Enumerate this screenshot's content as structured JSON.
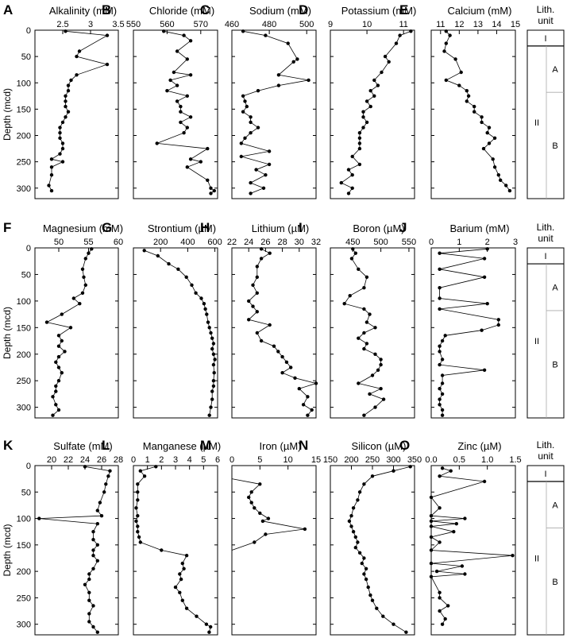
{
  "y_axis": {
    "label": "Depth (mcd)",
    "range": [
      0,
      320
    ],
    "ticks": [
      0,
      50,
      100,
      150,
      200,
      250,
      300
    ]
  },
  "lith_column": {
    "title_line1": "Lith.",
    "title_line2": "unit",
    "units": [
      {
        "label": "I",
        "top": 0,
        "bottom": 30
      },
      {
        "label": "II",
        "top": 30,
        "bottom": 320,
        "subunits": [
          {
            "label": "A",
            "top": 30,
            "bottom": 118
          },
          {
            "label": "B",
            "top": 118,
            "bottom": 320
          }
        ]
      }
    ]
  },
  "chart_data": [
    {
      "letter": "A",
      "type": "line",
      "title": "Alkalinity (mM)",
      "xlim": [
        2,
        3.5
      ],
      "ticks": [
        2.5,
        3,
        3.5
      ],
      "tick_labels": [
        "2.5",
        "3",
        "3.5"
      ],
      "x": [
        2.55,
        3.3,
        2.8,
        2.75,
        3.3,
        2.75,
        2.65,
        2.6,
        2.6,
        2.55,
        2.55,
        2.55,
        2.6,
        2.55,
        2.5,
        2.45,
        2.45,
        2.45,
        2.5,
        2.5,
        2.45,
        2.3,
        2.5,
        2.3,
        2.3,
        2.25,
        2.3
      ],
      "depth": [
        2,
        10,
        40,
        50,
        65,
        85,
        95,
        105,
        115,
        125,
        135,
        145,
        155,
        165,
        175,
        185,
        195,
        205,
        215,
        225,
        235,
        245,
        250,
        260,
        275,
        295,
        305
      ]
    },
    {
      "letter": "B",
      "type": "line",
      "title": "Chloride (mM)",
      "xlim": [
        550,
        575
      ],
      "ticks": [
        550,
        560,
        570
      ],
      "tick_labels": [
        "550",
        "560",
        "570"
      ],
      "x": [
        559,
        565,
        567,
        563,
        566,
        562,
        567,
        561,
        563,
        560,
        566,
        563,
        564,
        564,
        567,
        564,
        566,
        565,
        557,
        572,
        567,
        570,
        566,
        572,
        573,
        574,
        573
      ],
      "depth": [
        2,
        10,
        20,
        40,
        55,
        80,
        85,
        95,
        105,
        115,
        125,
        135,
        145,
        155,
        165,
        175,
        185,
        195,
        215,
        225,
        245,
        250,
        260,
        285,
        300,
        305,
        310
      ]
    },
    {
      "letter": "C",
      "type": "line",
      "title": "Sodium (mM)",
      "xlim": [
        460,
        505
      ],
      "ticks": [
        460,
        480,
        500
      ],
      "tick_labels": [
        "460",
        "480",
        "500"
      ],
      "x": [
        466,
        478,
        490,
        495,
        493,
        485,
        501,
        485,
        474,
        466,
        467,
        468,
        466,
        470,
        470,
        474,
        470,
        467,
        465,
        480,
        465,
        480,
        473,
        478,
        470,
        477,
        470
      ],
      "depth": [
        2,
        10,
        25,
        55,
        60,
        85,
        95,
        105,
        115,
        125,
        135,
        145,
        155,
        165,
        175,
        185,
        195,
        205,
        215,
        230,
        240,
        255,
        265,
        275,
        290,
        300,
        310
      ]
    },
    {
      "letter": "D",
      "type": "line",
      "title": "Potassium (mM)",
      "xlim": [
        9,
        11.3
      ],
      "ticks": [
        9,
        10,
        11
      ],
      "tick_labels": [
        "9",
        "10",
        "11"
      ],
      "x": [
        11.2,
        10.9,
        10.8,
        10.5,
        10.6,
        10.4,
        10.2,
        10.3,
        10.1,
        10.2,
        10.0,
        10.1,
        9.9,
        9.9,
        10.0,
        9.9,
        9.8,
        9.8,
        9.8,
        9.8,
        9.6,
        9.8,
        9.5,
        9.6,
        9.3,
        9.6,
        9.5
      ],
      "depth": [
        2,
        10,
        25,
        50,
        60,
        80,
        95,
        105,
        115,
        125,
        135,
        145,
        155,
        165,
        175,
        185,
        195,
        205,
        215,
        225,
        240,
        255,
        265,
        275,
        290,
        300,
        310
      ]
    },
    {
      "letter": "E",
      "type": "line",
      "title": "Calcium (mM)",
      "xlim": [
        10.5,
        15
      ],
      "ticks": [
        11,
        12,
        13,
        14,
        15
      ],
      "tick_labels": [
        "11",
        "12",
        "13",
        "14",
        "15"
      ],
      "x": [
        11.3,
        11.5,
        11.3,
        11.2,
        11.8,
        12.1,
        11.3,
        12.0,
        12.4,
        12.5,
        12.4,
        12.8,
        12.8,
        13.2,
        13.2,
        13.6,
        13.5,
        13.9,
        13.6,
        13.3,
        13.8,
        13.9,
        14.1,
        14.2,
        14.5,
        14.7
      ],
      "depth": [
        2,
        10,
        25,
        40,
        55,
        80,
        95,
        105,
        115,
        125,
        135,
        145,
        155,
        165,
        175,
        185,
        195,
        205,
        215,
        225,
        245,
        260,
        275,
        285,
        295,
        305
      ]
    },
    {
      "letter": "F",
      "type": "line",
      "title": "Magnesium (mM)",
      "xlim": [
        46,
        60
      ],
      "ticks": [
        50,
        55,
        60
      ],
      "tick_labels": [
        "50",
        "55",
        "60"
      ],
      "x": [
        55.5,
        55,
        54.5,
        54,
        54.2,
        54.5,
        54,
        52.5,
        53.5,
        50.5,
        48,
        52,
        50,
        50.5,
        50,
        51,
        50,
        49.5,
        50,
        50.5,
        50,
        49.5,
        49.5,
        49,
        49.5,
        50,
        49
      ],
      "depth": [
        2,
        10,
        20,
        40,
        55,
        70,
        85,
        95,
        105,
        125,
        140,
        150,
        165,
        175,
        185,
        195,
        205,
        215,
        225,
        235,
        250,
        260,
        270,
        280,
        295,
        305,
        315
      ]
    },
    {
      "letter": "G",
      "type": "line",
      "title": "Strontium (µM)",
      "xlim": [
        0,
        620
      ],
      "ticks": [
        200,
        400,
        600
      ],
      "tick_labels": [
        "200",
        "400",
        "600"
      ],
      "x": [
        80,
        180,
        260,
        330,
        390,
        430,
        460,
        500,
        520,
        530,
        540,
        550,
        560,
        570,
        580,
        590,
        580,
        590,
        600,
        590,
        595,
        590,
        590,
        580,
        580,
        570,
        560
      ],
      "depth": [
        5,
        15,
        30,
        40,
        55,
        70,
        85,
        95,
        105,
        115,
        125,
        140,
        150,
        160,
        170,
        180,
        190,
        200,
        210,
        220,
        235,
        250,
        260,
        270,
        285,
        300,
        315
      ]
    },
    {
      "letter": "H",
      "type": "line",
      "title": "Lithium (µM)",
      "xlim": [
        22,
        32
      ],
      "ticks": [
        22,
        24,
        26,
        28,
        30,
        32
      ],
      "tick_labels": [
        "22",
        "24",
        "26",
        "28",
        "30",
        "32"
      ],
      "x": [
        25.5,
        26.5,
        25.5,
        25,
        25,
        24.5,
        25,
        24,
        24.5,
        25,
        24,
        26.5,
        25,
        25.5,
        27,
        27.5,
        28,
        28.5,
        29,
        28,
        29.5,
        32,
        30,
        31,
        30.5,
        31.5,
        31
      ],
      "depth": [
        2,
        10,
        20,
        35,
        55,
        70,
        85,
        100,
        110,
        120,
        135,
        145,
        160,
        175,
        185,
        195,
        205,
        215,
        225,
        235,
        245,
        255,
        265,
        280,
        295,
        305,
        315
      ]
    },
    {
      "letter": "I",
      "type": "line",
      "title": "Boron (µM)",
      "xlim": [
        410,
        560
      ],
      "ticks": [
        450,
        500,
        550
      ],
      "tick_labels": [
        "450",
        "500",
        "550"
      ],
      "x": [
        450,
        455,
        448,
        460,
        475,
        470,
        445,
        435,
        470,
        480,
        475,
        490,
        470,
        460,
        475,
        470,
        490,
        500,
        500,
        495,
        485,
        460,
        500,
        480,
        505,
        490,
        470
      ],
      "depth": [
        2,
        10,
        20,
        40,
        55,
        75,
        90,
        105,
        115,
        125,
        140,
        150,
        160,
        170,
        180,
        190,
        200,
        210,
        220,
        230,
        240,
        255,
        265,
        275,
        285,
        300,
        315
      ]
    },
    {
      "letter": "J",
      "type": "line",
      "title": "Barium (mM)",
      "xlim": [
        0,
        3
      ],
      "ticks": [
        0,
        1,
        2,
        3
      ],
      "tick_labels": [
        "0",
        "1",
        "2",
        "3"
      ],
      "x": [
        2.0,
        0.3,
        1.9,
        0.3,
        1.9,
        0.3,
        0.3,
        2.0,
        0.3,
        2.4,
        2.4,
        1.8,
        0.5,
        0.4,
        0.3,
        0.3,
        0.4,
        0.3,
        1.9,
        0.4,
        0.4,
        0.3,
        0.4,
        0.3,
        0.3,
        0.4,
        0.4
      ],
      "depth": [
        2,
        10,
        20,
        40,
        55,
        75,
        95,
        105,
        115,
        135,
        145,
        155,
        165,
        175,
        185,
        195,
        210,
        220,
        230,
        240,
        255,
        265,
        275,
        285,
        295,
        305,
        315
      ]
    },
    {
      "letter": "K",
      "type": "line",
      "title": "Sulfate (mM)",
      "xlim": [
        18,
        28
      ],
      "ticks": [
        20,
        22,
        24,
        26,
        28
      ],
      "tick_labels": [
        "20",
        "22",
        "24",
        "26",
        "28"
      ],
      "x": [
        24,
        27,
        26.8,
        26.5,
        26.3,
        25.8,
        25.5,
        26,
        18.5,
        25.5,
        25,
        25,
        25.5,
        25,
        25,
        25.5,
        25,
        24.5,
        24.5,
        24,
        24.5,
        24.5,
        25,
        24.5,
        24.5,
        25,
        25.5
      ],
      "depth": [
        2,
        10,
        20,
        35,
        50,
        70,
        85,
        95,
        100,
        110,
        125,
        140,
        150,
        160,
        170,
        180,
        195,
        205,
        215,
        225,
        240,
        255,
        265,
        280,
        295,
        305,
        315
      ]
    },
    {
      "letter": "L",
      "type": "line",
      "title": "Manganese (µM)",
      "xlim": [
        0,
        6
      ],
      "ticks": [
        0,
        1,
        2,
        3,
        4,
        5,
        6
      ],
      "tick_labels": [
        "0",
        "1",
        "2",
        "3",
        "4",
        "5",
        "6"
      ],
      "x": [
        1.6,
        0.5,
        0.8,
        0.3,
        0.3,
        0.3,
        0.2,
        0.3,
        0.2,
        0.3,
        0.3,
        0.4,
        0.5,
        2.0,
        3.8,
        3.5,
        3.6,
        3.3,
        3.4,
        3.0,
        3.3,
        3.5,
        3.8,
        4.5,
        5.2,
        5.5,
        5.4
      ],
      "depth": [
        2,
        10,
        20,
        35,
        50,
        65,
        80,
        95,
        105,
        115,
        125,
        135,
        145,
        160,
        170,
        185,
        195,
        205,
        215,
        230,
        240,
        255,
        270,
        285,
        300,
        305,
        315
      ]
    },
    {
      "letter": "M",
      "type": "line",
      "title": "Iron (µM)",
      "xlim": [
        0,
        15
      ],
      "ticks": [
        0,
        5,
        10,
        15
      ],
      "tick_labels": [
        "0",
        "5",
        "10",
        "15"
      ],
      "x": [
        0,
        5,
        3.5,
        3,
        3.5,
        4,
        5,
        6.5,
        5.5,
        13,
        6,
        4,
        0
      ],
      "depth": [
        25,
        35,
        50,
        60,
        70,
        80,
        90,
        100,
        105,
        120,
        130,
        145,
        160
      ]
    },
    {
      "letter": "N",
      "type": "line",
      "title": "Silicon (µM)",
      "xlim": [
        150,
        350
      ],
      "ticks": [
        150,
        200,
        250,
        300,
        350
      ],
      "tick_labels": [
        "150",
        "200",
        "250",
        "300",
        "350"
      ],
      "x": [
        340,
        300,
        250,
        230,
        220,
        215,
        205,
        200,
        195,
        200,
        205,
        210,
        215,
        210,
        220,
        230,
        225,
        235,
        230,
        235,
        240,
        245,
        250,
        260,
        275,
        300,
        330
      ],
      "depth": [
        2,
        10,
        20,
        35,
        50,
        65,
        80,
        95,
        105,
        115,
        125,
        135,
        145,
        155,
        165,
        175,
        185,
        195,
        205,
        215,
        230,
        245,
        255,
        270,
        285,
        300,
        315
      ]
    },
    {
      "letter": "O",
      "type": "line",
      "title": "Zinc (µM)",
      "xlim": [
        0,
        1.5
      ],
      "ticks": [
        0,
        0.5,
        1.0,
        1.5
      ],
      "tick_labels": [
        "0.0",
        "0.5",
        "1.0",
        "1.5"
      ],
      "x": [
        0.2,
        0.35,
        0.15,
        0.95,
        0.0,
        0.15,
        0.0,
        0.6,
        0.0,
        0.45,
        0.0,
        0.4,
        0.0,
        0.15,
        0.0,
        1.45,
        0.0,
        0.55,
        0.1,
        0.6,
        0.0,
        0.15,
        0.15,
        0.3,
        0.15,
        0.25,
        0.2
      ],
      "depth": [
        5,
        10,
        20,
        30,
        60,
        80,
        95,
        100,
        105,
        110,
        115,
        125,
        135,
        145,
        160,
        170,
        185,
        190,
        200,
        205,
        210,
        240,
        250,
        265,
        275,
        290,
        300
      ]
    }
  ]
}
